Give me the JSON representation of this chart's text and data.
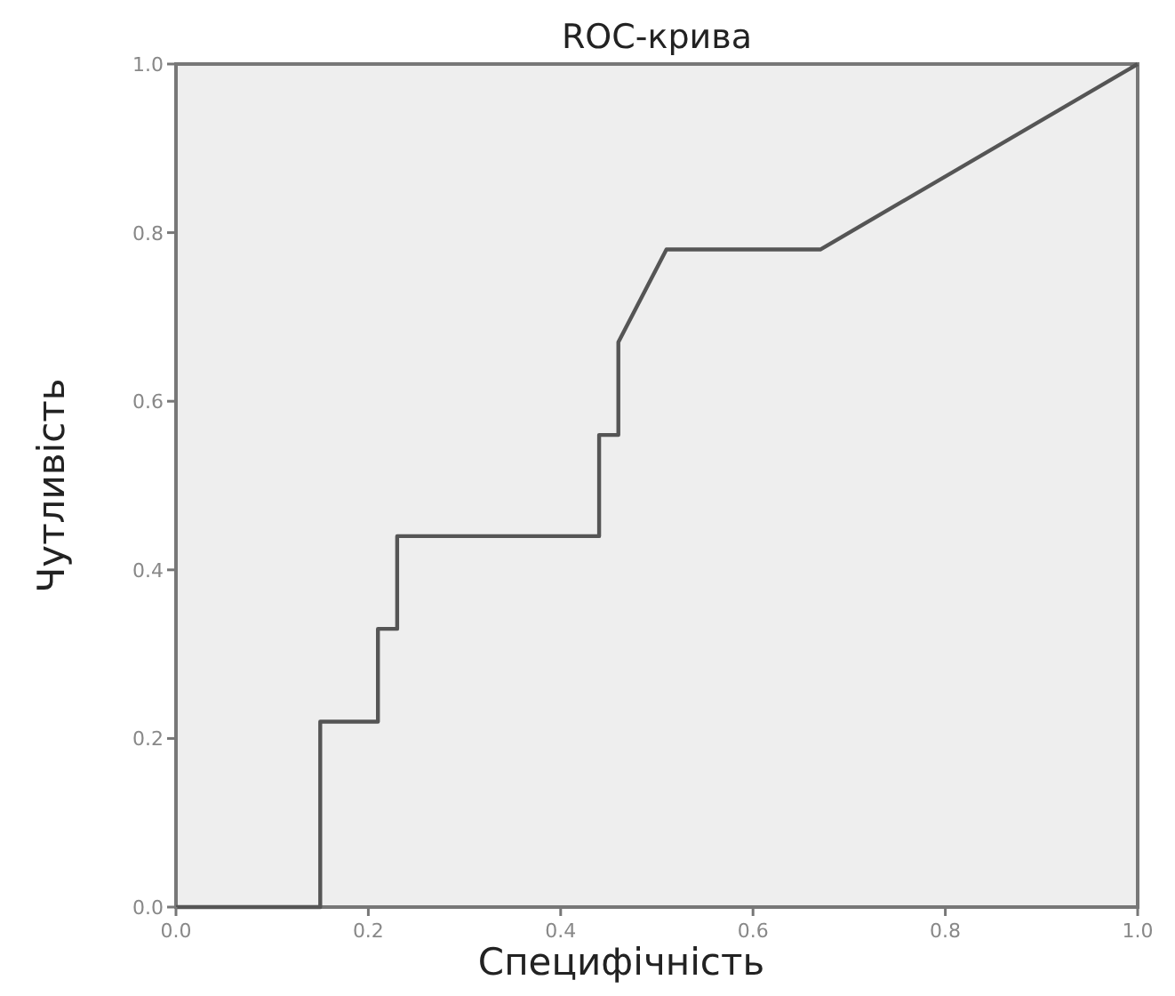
{
  "chart_data": {
    "type": "line",
    "title": "ROC-крива",
    "xlabel": "Специфічність",
    "ylabel": "Чутливість",
    "x": [
      0,
      0.15,
      0.15,
      0.21,
      0.21,
      0.23,
      0.23,
      0.44,
      0.44,
      0.46,
      0.46,
      0.51,
      0.67,
      1
    ],
    "series": [
      {
        "color": "#555555",
        "values": [
          0,
          0,
          0.22,
          0.22,
          0.33,
          0.33,
          0.44,
          0.44,
          0.56,
          0.56,
          0.67,
          0.78,
          0.78,
          1
        ]
      }
    ],
    "xlim": [
      0,
      1
    ],
    "ylim": [
      0,
      1
    ],
    "xticks": [
      {
        "value": 0,
        "label": "0.0"
      },
      {
        "value": 0.2,
        "label": "0.2"
      },
      {
        "value": 0.4,
        "label": "0.4"
      },
      {
        "value": 0.6,
        "label": "0.6"
      },
      {
        "value": 0.8,
        "label": "0.8"
      },
      {
        "value": 1,
        "label": "1.0"
      }
    ],
    "yticks": [
      {
        "value": 0,
        "label": "0.0"
      },
      {
        "value": 0.2,
        "label": "0.2"
      },
      {
        "value": 0.4,
        "label": "0.4"
      },
      {
        "value": 0.6,
        "label": "0.6"
      },
      {
        "value": 0.8,
        "label": "0.8"
      },
      {
        "value": 1,
        "label": "1.0"
      }
    ],
    "grid": false,
    "marker": "none",
    "line_style": "solid"
  }
}
